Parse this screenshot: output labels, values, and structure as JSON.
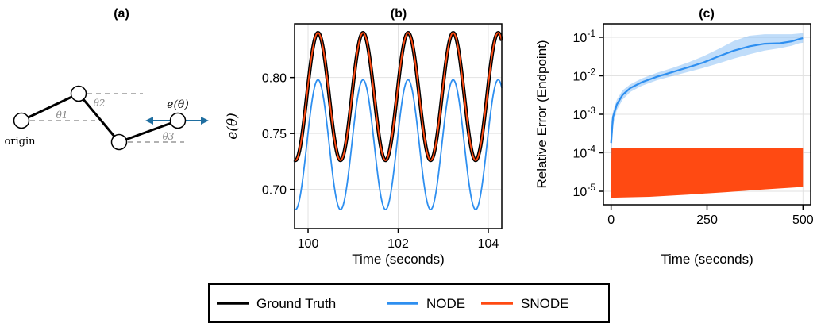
{
  "panels": {
    "a": "(a)",
    "b": "(b)",
    "c": "(c)"
  },
  "diagram_a": {
    "origin_label": "origin",
    "endpoint_label": "e(θ)",
    "angle_labels": [
      "θ1",
      "θ2",
      "θ3"
    ],
    "colors": {
      "link": "#000000",
      "arrow": "#1f6ea0",
      "dashed": "#999999"
    }
  },
  "legend": {
    "placement": "bottom-center",
    "entries": [
      {
        "label": "Ground Truth",
        "color": "#000000"
      },
      {
        "label": "NODE",
        "color": "#2e8ff0"
      },
      {
        "label": "SNODE",
        "color": "#ff4a12"
      }
    ]
  },
  "chart_data": [
    {
      "panel": "b",
      "type": "line",
      "title": "(b)",
      "xlabel": "Time (seconds)",
      "ylabel": "e(θ)",
      "xlim": [
        99.7,
        104.3
      ],
      "ylim": [
        0.665,
        0.848
      ],
      "xticks": [
        100,
        102,
        104
      ],
      "xtick_labels": [
        "100",
        "102",
        "104"
      ],
      "yticks": [
        0.7,
        0.75,
        0.8
      ],
      "ytick_labels": [
        "0.70",
        "0.75",
        "0.80"
      ],
      "grid": true,
      "series": [
        {
          "name": "Ground Truth",
          "color": "#000000",
          "period": 1.0,
          "phase_peak": 100.22,
          "center": 0.783,
          "amplitude": 0.057
        },
        {
          "name": "SNODE",
          "color": "#ff4a12",
          "period": 1.0,
          "phase_peak": 100.22,
          "center": 0.783,
          "amplitude": 0.057
        },
        {
          "name": "NODE",
          "color": "#2e8ff0",
          "period": 1.0,
          "phase_peak": 100.22,
          "center": 0.74,
          "amplitude": 0.058
        }
      ]
    },
    {
      "panel": "c",
      "type": "area",
      "title": "(c)",
      "xlabel": "Time (seconds)",
      "ylabel": "Relative Error (Endpoint)",
      "yscale": "log",
      "xlim": [
        -20,
        520
      ],
      "ylim_log10": [
        -5.35,
        -0.65
      ],
      "xticks": [
        0,
        250,
        500
      ],
      "xtick_labels": [
        "0",
        "250",
        "500"
      ],
      "yticks": [
        "10^-5",
        "10^-4",
        "10^-3",
        "10^-2",
        "10^-1"
      ],
      "ytick_exponents": [
        -5,
        -4,
        -3,
        -2,
        -1
      ],
      "grid": true,
      "series": [
        {
          "name": "NODE",
          "color": "#2e8ff0",
          "x": [
            0,
            5,
            15,
            30,
            50,
            80,
            120,
            160,
            200,
            240,
            280,
            320,
            360,
            400,
            440,
            470,
            490,
            500
          ],
          "median": [
            0.00018,
            0.00085,
            0.0018,
            0.0032,
            0.0048,
            0.0068,
            0.0095,
            0.0125,
            0.0165,
            0.022,
            0.032,
            0.045,
            0.058,
            0.068,
            0.07,
            0.078,
            0.09,
            0.095
          ],
          "upper": [
            0.0006,
            0.0012,
            0.0024,
            0.0042,
            0.006,
            0.0085,
            0.012,
            0.016,
            0.022,
            0.032,
            0.05,
            0.08,
            0.11,
            0.12,
            0.12,
            0.12,
            0.125,
            0.13
          ],
          "lower": [
            4e-05,
            0.0005,
            0.0013,
            0.0024,
            0.0038,
            0.0055,
            0.0077,
            0.0099,
            0.0125,
            0.016,
            0.021,
            0.028,
            0.036,
            0.045,
            0.052,
            0.06,
            0.07,
            0.072
          ]
        },
        {
          "name": "SNODE",
          "color": "#ff4a12",
          "x": [
            0,
            100,
            200,
            300,
            400,
            500
          ],
          "upper": [
            0.000135,
            0.000134,
            0.000134,
            0.000133,
            0.000133,
            0.000133
          ],
          "lower": [
            6.8e-06,
            7.2e-06,
            8.2e-06,
            9.5e-06,
            1.12e-05,
            1.3e-05
          ]
        }
      ]
    }
  ]
}
